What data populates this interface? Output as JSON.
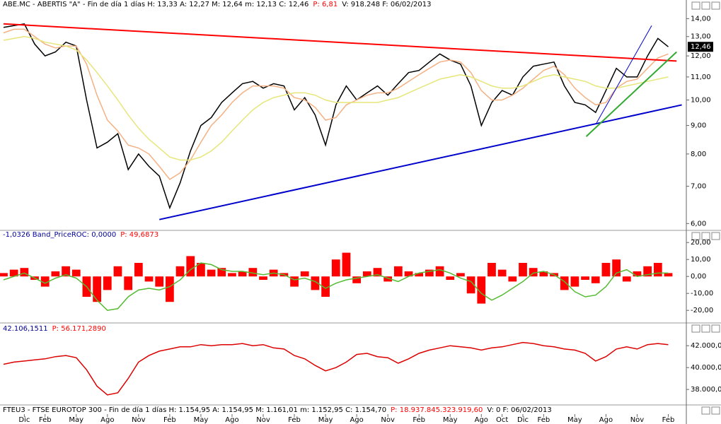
{
  "chart_data": [
    {
      "type": "line",
      "log": true,
      "header_parts": [
        {
          "text": "ABE.MC - ABERTIS  \"A\" - Fin de día 1 días  H: 13,33  A: 12,27  M: 12,64  m: 12,13  C: 12,46",
          "color": "#000000"
        },
        {
          "text": "P: 6,81",
          "color": "#ff0000"
        },
        {
          "text": "V: 918.248  F: 06/02/2013",
          "color": "#000000"
        }
      ],
      "categories": [
        null,
        null,
        "Dic",
        null,
        "Feb",
        null,
        null,
        "May",
        null,
        null,
        "Ago",
        null,
        null,
        "Nov",
        null,
        null,
        "Feb",
        null,
        null,
        "May",
        null,
        null,
        "Ago",
        null,
        null,
        "Nov",
        null,
        null,
        "Feb",
        null,
        null,
        "May",
        null,
        null,
        "Ago",
        null,
        null,
        "Nov",
        null,
        null,
        "Feb",
        null,
        null,
        "May",
        null,
        null,
        "Ago",
        null,
        "Oct",
        null,
        "Dic",
        null,
        "Feb",
        null,
        null,
        "May",
        null,
        null,
        "Ago",
        null,
        null,
        "Nov",
        null,
        null,
        "Feb"
      ],
      "series": [
        {
          "color": "#000000",
          "values": [
            13.5,
            13.6,
            13.7,
            12.6,
            12.0,
            12.2,
            12.7,
            12.5,
            10.0,
            8.2,
            8.4,
            8.7,
            7.5,
            8.0,
            7.6,
            7.3,
            6.4,
            7.1,
            8.1,
            9.0,
            9.3,
            9.9,
            10.3,
            10.7,
            10.8,
            10.5,
            10.7,
            10.6,
            9.6,
            10.1,
            9.4,
            8.3,
            9.8,
            10.6,
            10.0,
            10.3,
            10.6,
            10.2,
            10.7,
            11.2,
            11.3,
            11.7,
            12.1,
            11.8,
            11.6,
            10.6,
            9.0,
            9.9,
            10.4,
            10.2,
            11.0,
            11.5,
            11.6,
            11.7,
            10.6,
            9.9,
            9.8,
            9.5,
            10.4,
            11.4,
            11.0,
            11.0,
            12.0,
            12.9,
            12.46
          ]
        },
        {
          "color": "#f4b183",
          "values": [
            13.2,
            13.4,
            13.4,
            13.0,
            12.6,
            12.4,
            12.5,
            12.5,
            11.6,
            10.2,
            9.2,
            8.8,
            8.3,
            8.2,
            8.0,
            7.6,
            7.2,
            7.4,
            7.8,
            8.4,
            9.0,
            9.4,
            9.9,
            10.3,
            10.6,
            10.6,
            10.6,
            10.5,
            10.1,
            10.0,
            9.7,
            9.2,
            9.3,
            9.8,
            10.0,
            10.2,
            10.3,
            10.3,
            10.5,
            10.8,
            11.1,
            11.4,
            11.7,
            11.8,
            11.7,
            11.2,
            10.4,
            10.0,
            10.0,
            10.2,
            10.5,
            10.9,
            11.3,
            11.5,
            11.1,
            10.5,
            10.1,
            9.8,
            9.9,
            10.5,
            10.8,
            10.9,
            11.4,
            11.9,
            12.1
          ]
        },
        {
          "color": "#e6e67a",
          "values": [
            12.8,
            12.9,
            13.0,
            12.9,
            12.7,
            12.6,
            12.5,
            12.3,
            11.8,
            11.2,
            10.6,
            10.0,
            9.4,
            8.9,
            8.5,
            8.2,
            7.9,
            7.8,
            7.8,
            7.9,
            8.1,
            8.4,
            8.8,
            9.2,
            9.6,
            9.9,
            10.1,
            10.2,
            10.3,
            10.3,
            10.2,
            10.0,
            9.9,
            9.9,
            9.9,
            9.9,
            9.9,
            10.0,
            10.1,
            10.3,
            10.5,
            10.7,
            10.9,
            11.0,
            11.1,
            11.0,
            10.8,
            10.6,
            10.5,
            10.5,
            10.6,
            10.8,
            11.0,
            11.1,
            11.0,
            10.9,
            10.8,
            10.6,
            10.5,
            10.5,
            10.6,
            10.7,
            10.8,
            10.9,
            11.0
          ]
        }
      ],
      "trendlines": [
        {
          "color": "#ff0000",
          "width": 2,
          "x": [
            0,
            64.8
          ],
          "y": [
            13.7,
            11.75
          ]
        },
        {
          "color": "#0000cc",
          "width": 2,
          "x": [
            15,
            65.3
          ],
          "y": [
            6.1,
            9.8
          ]
        },
        {
          "color": "#33aa33",
          "width": 2,
          "x": [
            56.1,
            64.8
          ],
          "y": [
            8.6,
            12.2
          ]
        },
        {
          "color": "#0000cc",
          "width": 1,
          "x": [
            57.1,
            62.4
          ],
          "y": [
            9.1,
            13.6
          ]
        }
      ],
      "last_value": {
        "value": 12.46,
        "label": "12,46"
      },
      "ylim": [
        5.85,
        14.6
      ],
      "yticks": [
        {
          "value": 6,
          "label": "6,00"
        },
        {
          "value": 7,
          "label": "7,00"
        },
        {
          "value": 8,
          "label": "8,00"
        },
        {
          "value": 9,
          "label": "9,00"
        },
        {
          "value": 10,
          "label": "10,00"
        },
        {
          "value": 11,
          "label": "11,00"
        },
        {
          "value": 12,
          "label": "12,00"
        },
        {
          "value": 13,
          "label": "13,00"
        },
        {
          "value": 14,
          "label": "14,00"
        }
      ]
    },
    {
      "type": "combo",
      "header_parts": [
        {
          "text": "-1,0326  Band_PriceROC: 0,0000",
          "color": "#000099"
        },
        {
          "text": "P: 49,6873",
          "color": "#ff0000"
        }
      ],
      "series": [
        {
          "type": "bar",
          "color": "#ff0000",
          "values": [
            2,
            4,
            5,
            -2,
            -6,
            3,
            6,
            4,
            -12,
            -15,
            -8,
            6,
            -8,
            8,
            -3,
            -6,
            -15,
            6,
            12,
            8,
            4,
            5,
            2,
            3,
            5,
            -2,
            4,
            2,
            -6,
            3,
            -8,
            -12,
            10,
            14,
            -4,
            3,
            5,
            -3,
            6,
            3,
            2,
            4,
            6,
            -2,
            2,
            -10,
            -16,
            8,
            4,
            -3,
            8,
            5,
            3,
            2,
            -8,
            -6,
            -2,
            -4,
            8,
            10,
            -3,
            3,
            6,
            8,
            2
          ]
        },
        {
          "type": "line",
          "color": "#55bb33",
          "values": [
            -2,
            0,
            2,
            -1,
            -4,
            -1,
            1,
            -1,
            -6,
            -14,
            -20,
            -19,
            -12,
            -8,
            -7,
            -8,
            -6,
            -2,
            4,
            8,
            7,
            4,
            3,
            3,
            2,
            1,
            2,
            1,
            -2,
            -1,
            -3,
            -7,
            -4,
            -2,
            -1,
            0,
            1,
            -1,
            -3,
            0,
            2,
            3,
            4,
            2,
            -1,
            -3,
            -10,
            -14,
            -11,
            -7,
            -3,
            2,
            3,
            1,
            -3,
            -9,
            -12,
            -11,
            -6,
            2,
            4,
            0,
            1,
            2,
            2
          ]
        }
      ],
      "ylim": [
        -27,
        23
      ],
      "yticks": [
        {
          "value": -20,
          "label": "-20,00"
        },
        {
          "value": -10,
          "label": "-10,00"
        },
        {
          "value": 0,
          "label": "0,00"
        },
        {
          "value": 10,
          "label": "10,00"
        },
        {
          "value": 20,
          "label": "20,00"
        }
      ]
    },
    {
      "type": "line",
      "header_parts": [
        {
          "text": "42.106,1511",
          "color": "#000099"
        },
        {
          "text": "P: 56.171,2890",
          "color": "#ff0000"
        }
      ],
      "series": [
        {
          "color": "#dd0000",
          "values": [
            40300,
            40500,
            40600,
            40700,
            40800,
            41000,
            41100,
            40900,
            39800,
            38300,
            37500,
            37700,
            39000,
            40500,
            41100,
            41500,
            41700,
            41900,
            41900,
            42100,
            42000,
            42100,
            42100,
            42200,
            42000,
            42100,
            41800,
            41700,
            41100,
            40800,
            40200,
            39700,
            40000,
            40500,
            41200,
            41300,
            41000,
            40900,
            40400,
            40800,
            41300,
            41600,
            41800,
            42000,
            41900,
            41800,
            41600,
            41800,
            41900,
            42100,
            42300,
            42200,
            42000,
            41900,
            41700,
            41600,
            41300,
            40600,
            41000,
            41700,
            41900,
            41700,
            42100,
            42200,
            42100
          ]
        }
      ],
      "ylim": [
        36650,
        43500
      ],
      "yticks": [
        {
          "value": 38000,
          "label": "38.000,00"
        },
        {
          "value": 40000,
          "label": "40.000,00"
        },
        {
          "value": 42000,
          "label": "42.000,00"
        }
      ],
      "footer_parts": [
        {
          "text": "FTEU3 - FTSE EUROTOP 300 - Fin de día 1 días  H: 1.154,95  A: 1.154,95  M: 1.161,01  m: 1.152,95  C: 1.154,70",
          "color": "#000000"
        },
        {
          "text": "P: 18.937.845.323.919,60",
          "color": "#ff0000"
        },
        {
          "text": "V: 0  F: 06/02/2013",
          "color": "#000000"
        }
      ]
    }
  ]
}
